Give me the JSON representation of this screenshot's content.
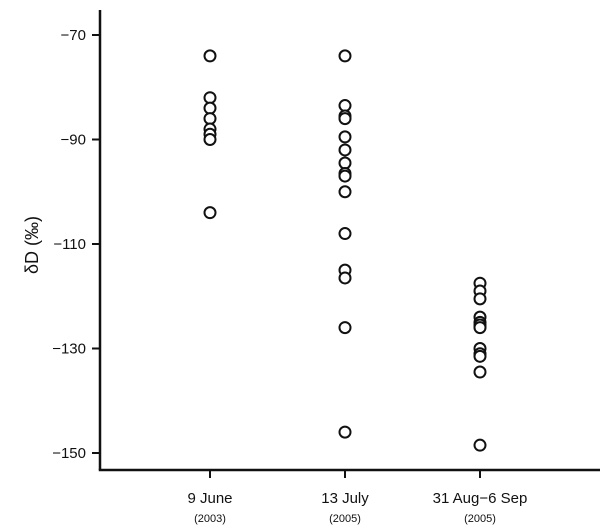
{
  "chart_data": {
    "type": "scatter",
    "title": "",
    "xlabel": "",
    "ylabel": "δD (‰)",
    "ylim": [
      -154,
      -66
    ],
    "yticks": [
      -70,
      -90,
      -110,
      -130,
      -150
    ],
    "ytick_labels": [
      "−70",
      "−90",
      "−110",
      "−130",
      "−150"
    ],
    "grid": false,
    "categories": [
      {
        "label": "9 June",
        "sublabel": "(2003)"
      },
      {
        "label": "13 July",
        "sublabel": "(2005)"
      },
      {
        "label": "31 Aug−6 Sep",
        "sublabel": "(2005)"
      }
    ],
    "series": [
      {
        "category_index": 0,
        "values": [
          -74,
          -82,
          -84,
          -86,
          -88,
          -89,
          -90,
          -104
        ]
      },
      {
        "category_index": 1,
        "values": [
          -74,
          -83.5,
          -85.5,
          -86,
          -89.5,
          -92,
          -94.5,
          -96.5,
          -97,
          -100,
          -108,
          -115,
          -116.5,
          -126,
          -146
        ]
      },
      {
        "category_index": 2,
        "values": [
          -117.5,
          -119,
          -120.5,
          -124,
          -125,
          -125.5,
          -126,
          -130,
          -131,
          -131.5,
          -134.5,
          -148.5
        ]
      }
    ]
  }
}
